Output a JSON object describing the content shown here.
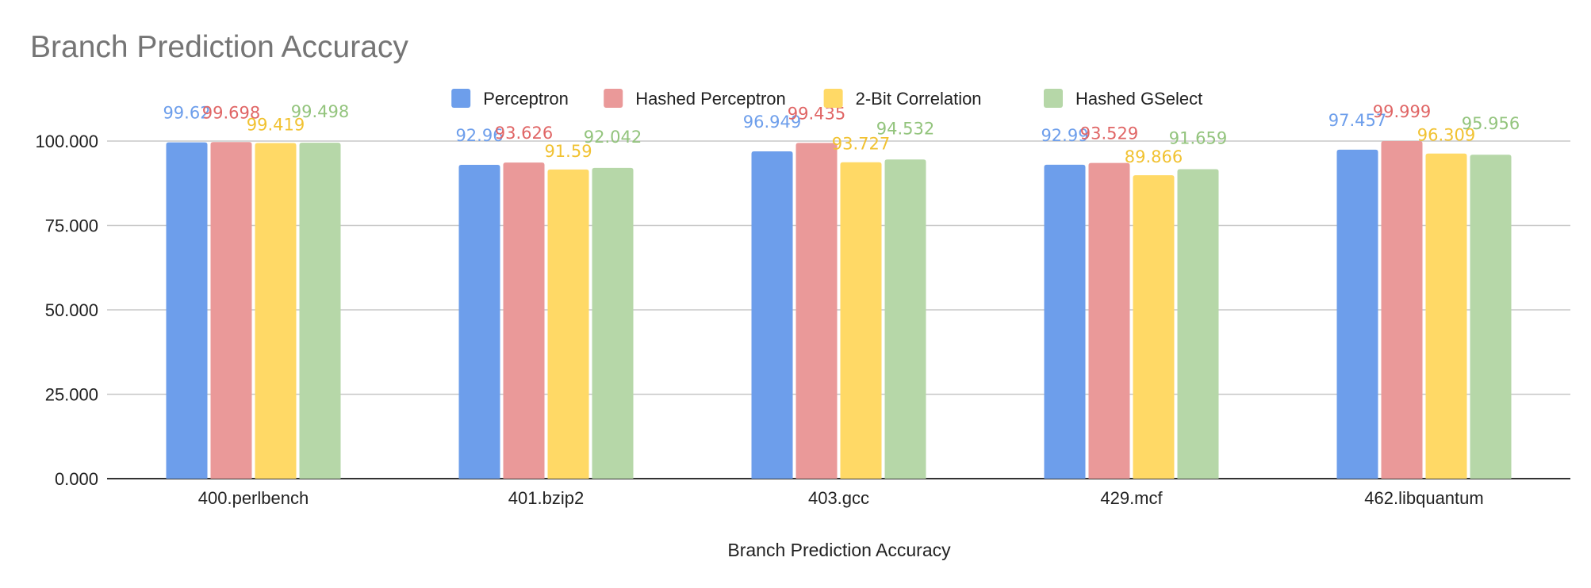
{
  "chart_data": {
    "type": "bar",
    "title": "Branch Prediction Accuracy",
    "xlabel": "Branch Prediction Accuracy",
    "ylabel": "",
    "ylim": [
      0,
      110
    ],
    "yticks": [
      "0.000",
      "25.000",
      "50.000",
      "75.000",
      "100.000"
    ],
    "ytick_values": [
      0,
      25,
      50,
      75,
      100
    ],
    "grid": true,
    "legend_position": "top",
    "categories": [
      "400.perlbench",
      "401.bzip2",
      "403.gcc",
      "429.mcf",
      "462.libquantum"
    ],
    "series": [
      {
        "name": "Perceptron",
        "color": "#6d9eeb",
        "label_color": "#6d9eeb",
        "values": [
          99.62,
          92.96,
          96.949,
          92.99,
          97.457
        ],
        "labels": [
          "99.62",
          "92.96",
          "96.949",
          "92.99",
          "97.457"
        ]
      },
      {
        "name": "Hashed Perceptron",
        "color": "#ea9999",
        "label_color": "#e06666",
        "values": [
          99.698,
          93.626,
          99.435,
          93.529,
          99.999
        ],
        "labels": [
          "99.698",
          "93.626",
          "99.435",
          "93.529",
          "99.999"
        ]
      },
      {
        "name": "2-Bit Correlation",
        "color": "#ffd966",
        "label_color": "#f1c232",
        "values": [
          99.419,
          91.59,
          93.727,
          89.866,
          96.309
        ],
        "labels": [
          "99.419",
          "91.59",
          "93.727",
          "89.866",
          "96.309"
        ]
      },
      {
        "name": "Hashed GSelect",
        "color": "#b6d7a8",
        "label_color": "#93c47d",
        "values": [
          99.498,
          92.042,
          94.532,
          91.659,
          95.956
        ],
        "labels": [
          "99.498",
          "92.042",
          "94.532",
          "91.659",
          "95.956"
        ]
      }
    ]
  }
}
